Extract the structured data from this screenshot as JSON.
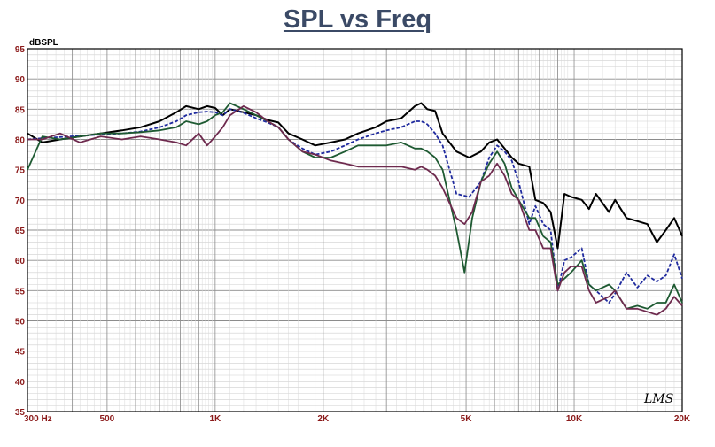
{
  "chart_data": {
    "type": "line",
    "title": "SPL vs Freq",
    "ylabel": "dBSPL",
    "xlabel": "",
    "x_scale": "log",
    "xlim": [
      300,
      20000
    ],
    "ylim": [
      35,
      95
    ],
    "grid": true,
    "y_ticks": [
      35,
      40,
      45,
      50,
      55,
      60,
      65,
      70,
      75,
      80,
      85,
      90,
      95
    ],
    "x_tick_labels": [
      {
        "value": 300,
        "label": "300  Hz"
      },
      {
        "value": 500,
        "label": "500"
      },
      {
        "value": 1000,
        "label": "1K"
      },
      {
        "value": 2000,
        "label": "2K"
      },
      {
        "value": 5000,
        "label": "5K"
      },
      {
        "value": 10000,
        "label": "10K"
      },
      {
        "value": 20000,
        "label": "20K"
      }
    ],
    "watermark": "LMS",
    "series": [
      {
        "color": "#000000",
        "dash": "solid",
        "points": [
          [
            300,
            81
          ],
          [
            330,
            79.5
          ],
          [
            370,
            80
          ],
          [
            420,
            80.5
          ],
          [
            480,
            81
          ],
          [
            550,
            81.5
          ],
          [
            620,
            82
          ],
          [
            700,
            83
          ],
          [
            780,
            84.5
          ],
          [
            830,
            85.5
          ],
          [
            900,
            85
          ],
          [
            950,
            85.5
          ],
          [
            1000,
            85.2
          ],
          [
            1050,
            84
          ],
          [
            1100,
            85
          ],
          [
            1200,
            84.5
          ],
          [
            1300,
            84
          ],
          [
            1400,
            83.2
          ],
          [
            1500,
            82.8
          ],
          [
            1600,
            81
          ],
          [
            1750,
            80
          ],
          [
            1900,
            79
          ],
          [
            2100,
            79.5
          ],
          [
            2300,
            80
          ],
          [
            2500,
            81
          ],
          [
            2800,
            82
          ],
          [
            3000,
            83
          ],
          [
            3300,
            83.5
          ],
          [
            3600,
            85.5
          ],
          [
            3750,
            86
          ],
          [
            3900,
            85
          ],
          [
            4100,
            84.7
          ],
          [
            4300,
            81
          ],
          [
            4700,
            78
          ],
          [
            5100,
            77
          ],
          [
            5500,
            78
          ],
          [
            5800,
            79.5
          ],
          [
            6100,
            80
          ],
          [
            6400,
            78.5
          ],
          [
            6700,
            77
          ],
          [
            7000,
            76
          ],
          [
            7500,
            75.5
          ],
          [
            7800,
            70
          ],
          [
            8200,
            69.5
          ],
          [
            8600,
            68
          ],
          [
            9000,
            62
          ],
          [
            9400,
            71
          ],
          [
            9800,
            70.5
          ],
          [
            10500,
            70
          ],
          [
            11000,
            68.5
          ],
          [
            11500,
            71
          ],
          [
            12500,
            68
          ],
          [
            13000,
            70
          ],
          [
            14000,
            67
          ],
          [
            15000,
            66.5
          ],
          [
            16000,
            66
          ],
          [
            17000,
            63
          ],
          [
            18000,
            65
          ],
          [
            19000,
            67
          ],
          [
            20000,
            64
          ]
        ]
      },
      {
        "color": "#1f2a9e",
        "dash": "dashed",
        "points": [
          [
            300,
            80
          ],
          [
            330,
            80.2
          ],
          [
            370,
            80.4
          ],
          [
            420,
            80.6
          ],
          [
            480,
            80.8
          ],
          [
            550,
            81
          ],
          [
            620,
            81.3
          ],
          [
            700,
            82
          ],
          [
            780,
            83
          ],
          [
            830,
            84
          ],
          [
            900,
            84.5
          ],
          [
            950,
            84.6
          ],
          [
            1000,
            84.5
          ],
          [
            1050,
            84
          ],
          [
            1100,
            85
          ],
          [
            1200,
            84.4
          ],
          [
            1300,
            83.5
          ],
          [
            1400,
            82.8
          ],
          [
            1500,
            82
          ],
          [
            1600,
            80
          ],
          [
            1750,
            78.5
          ],
          [
            1900,
            77.5
          ],
          [
            2100,
            78
          ],
          [
            2300,
            79
          ],
          [
            2500,
            80
          ],
          [
            2800,
            81
          ],
          [
            3000,
            81.5
          ],
          [
            3300,
            82
          ],
          [
            3600,
            83
          ],
          [
            3750,
            83
          ],
          [
            3900,
            82.5
          ],
          [
            4100,
            81
          ],
          [
            4300,
            79
          ],
          [
            4700,
            71
          ],
          [
            5100,
            70.5
          ],
          [
            5500,
            73
          ],
          [
            5800,
            77
          ],
          [
            6100,
            79
          ],
          [
            6400,
            78
          ],
          [
            6700,
            76.5
          ],
          [
            7000,
            73
          ],
          [
            7500,
            66
          ],
          [
            7800,
            69
          ],
          [
            8200,
            66
          ],
          [
            8600,
            65
          ],
          [
            9000,
            55
          ],
          [
            9400,
            60
          ],
          [
            9800,
            60.5
          ],
          [
            10500,
            62
          ],
          [
            11000,
            56
          ],
          [
            11500,
            55
          ],
          [
            12500,
            53
          ],
          [
            13000,
            54.5
          ],
          [
            14000,
            58
          ],
          [
            15000,
            55.5
          ],
          [
            16000,
            57.5
          ],
          [
            17000,
            56.5
          ],
          [
            18000,
            57.5
          ],
          [
            19000,
            61
          ],
          [
            20000,
            57
          ]
        ]
      },
      {
        "color": "#1e5a32",
        "dash": "solid",
        "points": [
          [
            300,
            75
          ],
          [
            330,
            80.5
          ],
          [
            370,
            80
          ],
          [
            420,
            80.5
          ],
          [
            480,
            81
          ],
          [
            550,
            81
          ],
          [
            620,
            81.2
          ],
          [
            700,
            81.5
          ],
          [
            780,
            82
          ],
          [
            830,
            83
          ],
          [
            900,
            82.5
          ],
          [
            950,
            83
          ],
          [
            1000,
            84
          ],
          [
            1050,
            84.5
          ],
          [
            1100,
            86
          ],
          [
            1200,
            85
          ],
          [
            1300,
            84
          ],
          [
            1400,
            83
          ],
          [
            1500,
            82
          ],
          [
            1600,
            80
          ],
          [
            1750,
            78
          ],
          [
            1900,
            77
          ],
          [
            2100,
            77
          ],
          [
            2300,
            78
          ],
          [
            2500,
            79
          ],
          [
            2800,
            79
          ],
          [
            3000,
            79
          ],
          [
            3300,
            79.5
          ],
          [
            3600,
            78.5
          ],
          [
            3750,
            78.5
          ],
          [
            3900,
            78
          ],
          [
            4100,
            77
          ],
          [
            4300,
            75
          ],
          [
            4700,
            65
          ],
          [
            4950,
            58
          ],
          [
            5200,
            67
          ],
          [
            5500,
            73
          ],
          [
            5800,
            76
          ],
          [
            6100,
            78
          ],
          [
            6400,
            76
          ],
          [
            6700,
            72
          ],
          [
            7000,
            70
          ],
          [
            7500,
            67
          ],
          [
            7800,
            67
          ],
          [
            8200,
            64
          ],
          [
            8600,
            63
          ],
          [
            9000,
            56
          ],
          [
            9400,
            57
          ],
          [
            9800,
            58
          ],
          [
            10500,
            60
          ],
          [
            11000,
            56
          ],
          [
            11500,
            55
          ],
          [
            12500,
            56
          ],
          [
            13000,
            55
          ],
          [
            14000,
            52
          ],
          [
            15000,
            52.5
          ],
          [
            16000,
            52
          ],
          [
            17000,
            53
          ],
          [
            18000,
            53
          ],
          [
            19000,
            56
          ],
          [
            20000,
            53
          ]
        ]
      },
      {
        "color": "#6e2a4e",
        "dash": "solid",
        "points": [
          [
            300,
            80
          ],
          [
            330,
            80
          ],
          [
            370,
            81
          ],
          [
            420,
            79.5
          ],
          [
            480,
            80.5
          ],
          [
            550,
            80
          ],
          [
            620,
            80.5
          ],
          [
            700,
            80
          ],
          [
            780,
            79.5
          ],
          [
            830,
            79
          ],
          [
            900,
            81
          ],
          [
            950,
            79
          ],
          [
            1000,
            80.5
          ],
          [
            1050,
            82
          ],
          [
            1100,
            84
          ],
          [
            1200,
            85.5
          ],
          [
            1300,
            84.5
          ],
          [
            1400,
            83
          ],
          [
            1500,
            82
          ],
          [
            1600,
            80
          ],
          [
            1750,
            78
          ],
          [
            1900,
            77.5
          ],
          [
            2100,
            76.5
          ],
          [
            2300,
            76
          ],
          [
            2500,
            75.5
          ],
          [
            2800,
            75.5
          ],
          [
            3000,
            75.5
          ],
          [
            3300,
            75.5
          ],
          [
            3600,
            75
          ],
          [
            3750,
            75.5
          ],
          [
            3900,
            75
          ],
          [
            4100,
            74
          ],
          [
            4300,
            72
          ],
          [
            4700,
            67
          ],
          [
            4950,
            66
          ],
          [
            5200,
            68
          ],
          [
            5500,
            73
          ],
          [
            5800,
            74
          ],
          [
            6100,
            76
          ],
          [
            6400,
            74
          ],
          [
            6700,
            71
          ],
          [
            7000,
            70
          ],
          [
            7500,
            65
          ],
          [
            7800,
            65
          ],
          [
            8200,
            62
          ],
          [
            8600,
            62
          ],
          [
            9000,
            55
          ],
          [
            9400,
            58
          ],
          [
            9800,
            59
          ],
          [
            10500,
            59
          ],
          [
            11000,
            55
          ],
          [
            11500,
            53
          ],
          [
            12500,
            54
          ],
          [
            13000,
            55
          ],
          [
            14000,
            52
          ],
          [
            15000,
            52
          ],
          [
            16000,
            51.5
          ],
          [
            17000,
            51
          ],
          [
            18000,
            52
          ],
          [
            19000,
            54
          ],
          [
            20000,
            52.5
          ]
        ]
      }
    ]
  }
}
